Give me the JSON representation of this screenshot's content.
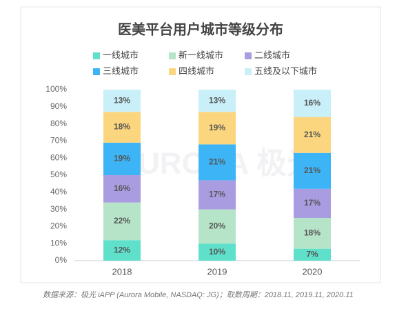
{
  "chart_data": {
    "type": "stacked_bar",
    "title": "医美平台用户城市等级分布",
    "categories": [
      "2018",
      "2019",
      "2020"
    ],
    "series": [
      {
        "name": "一线城市",
        "color": "#5fe0cb",
        "values": [
          12,
          10,
          7
        ],
        "value_labels": [
          "12%",
          "10%",
          "7%"
        ]
      },
      {
        "name": "新一线城市",
        "color": "#b6e4c9",
        "values": [
          22,
          20,
          18
        ],
        "value_labels": [
          "22%",
          "20%",
          "18%"
        ]
      },
      {
        "name": "二线城市",
        "color": "#aa9ce1",
        "values": [
          16,
          17,
          17
        ],
        "value_labels": [
          "16%",
          "17%",
          "17%"
        ]
      },
      {
        "name": "三线城市",
        "color": "#3db4f5",
        "values": [
          19,
          21,
          21
        ],
        "value_labels": [
          "19%",
          "21%",
          "21%"
        ]
      },
      {
        "name": "四线城市",
        "color": "#fbd67e",
        "values": [
          18,
          19,
          21
        ],
        "value_labels": [
          "18%",
          "19%",
          "21%"
        ]
      },
      {
        "name": "五线及以下城市",
        "color": "#c9eff9",
        "values": [
          13,
          13,
          16
        ],
        "value_labels": [
          "13%",
          "13%",
          "16%"
        ]
      }
    ],
    "ylim": [
      0,
      100
    ],
    "yticks": [
      {
        "value": 0,
        "label": "0%"
      },
      {
        "value": 10,
        "label": "10%"
      },
      {
        "value": 20,
        "label": "20%"
      },
      {
        "value": 30,
        "label": "30%"
      },
      {
        "value": 40,
        "label": "40%"
      },
      {
        "value": 50,
        "label": "50%"
      },
      {
        "value": 60,
        "label": "60%"
      },
      {
        "value": 70,
        "label": "70%"
      },
      {
        "value": 80,
        "label": "80%"
      },
      {
        "value": 90,
        "label": "90%"
      },
      {
        "value": 100,
        "label": "100%"
      }
    ],
    "watermark": "URORA 极光",
    "source": "数据来源：极光 iAPP (Aurora Mobile, NASDAQ: JG)；取数周期：2018.11, 2019.11, 2020.11"
  }
}
